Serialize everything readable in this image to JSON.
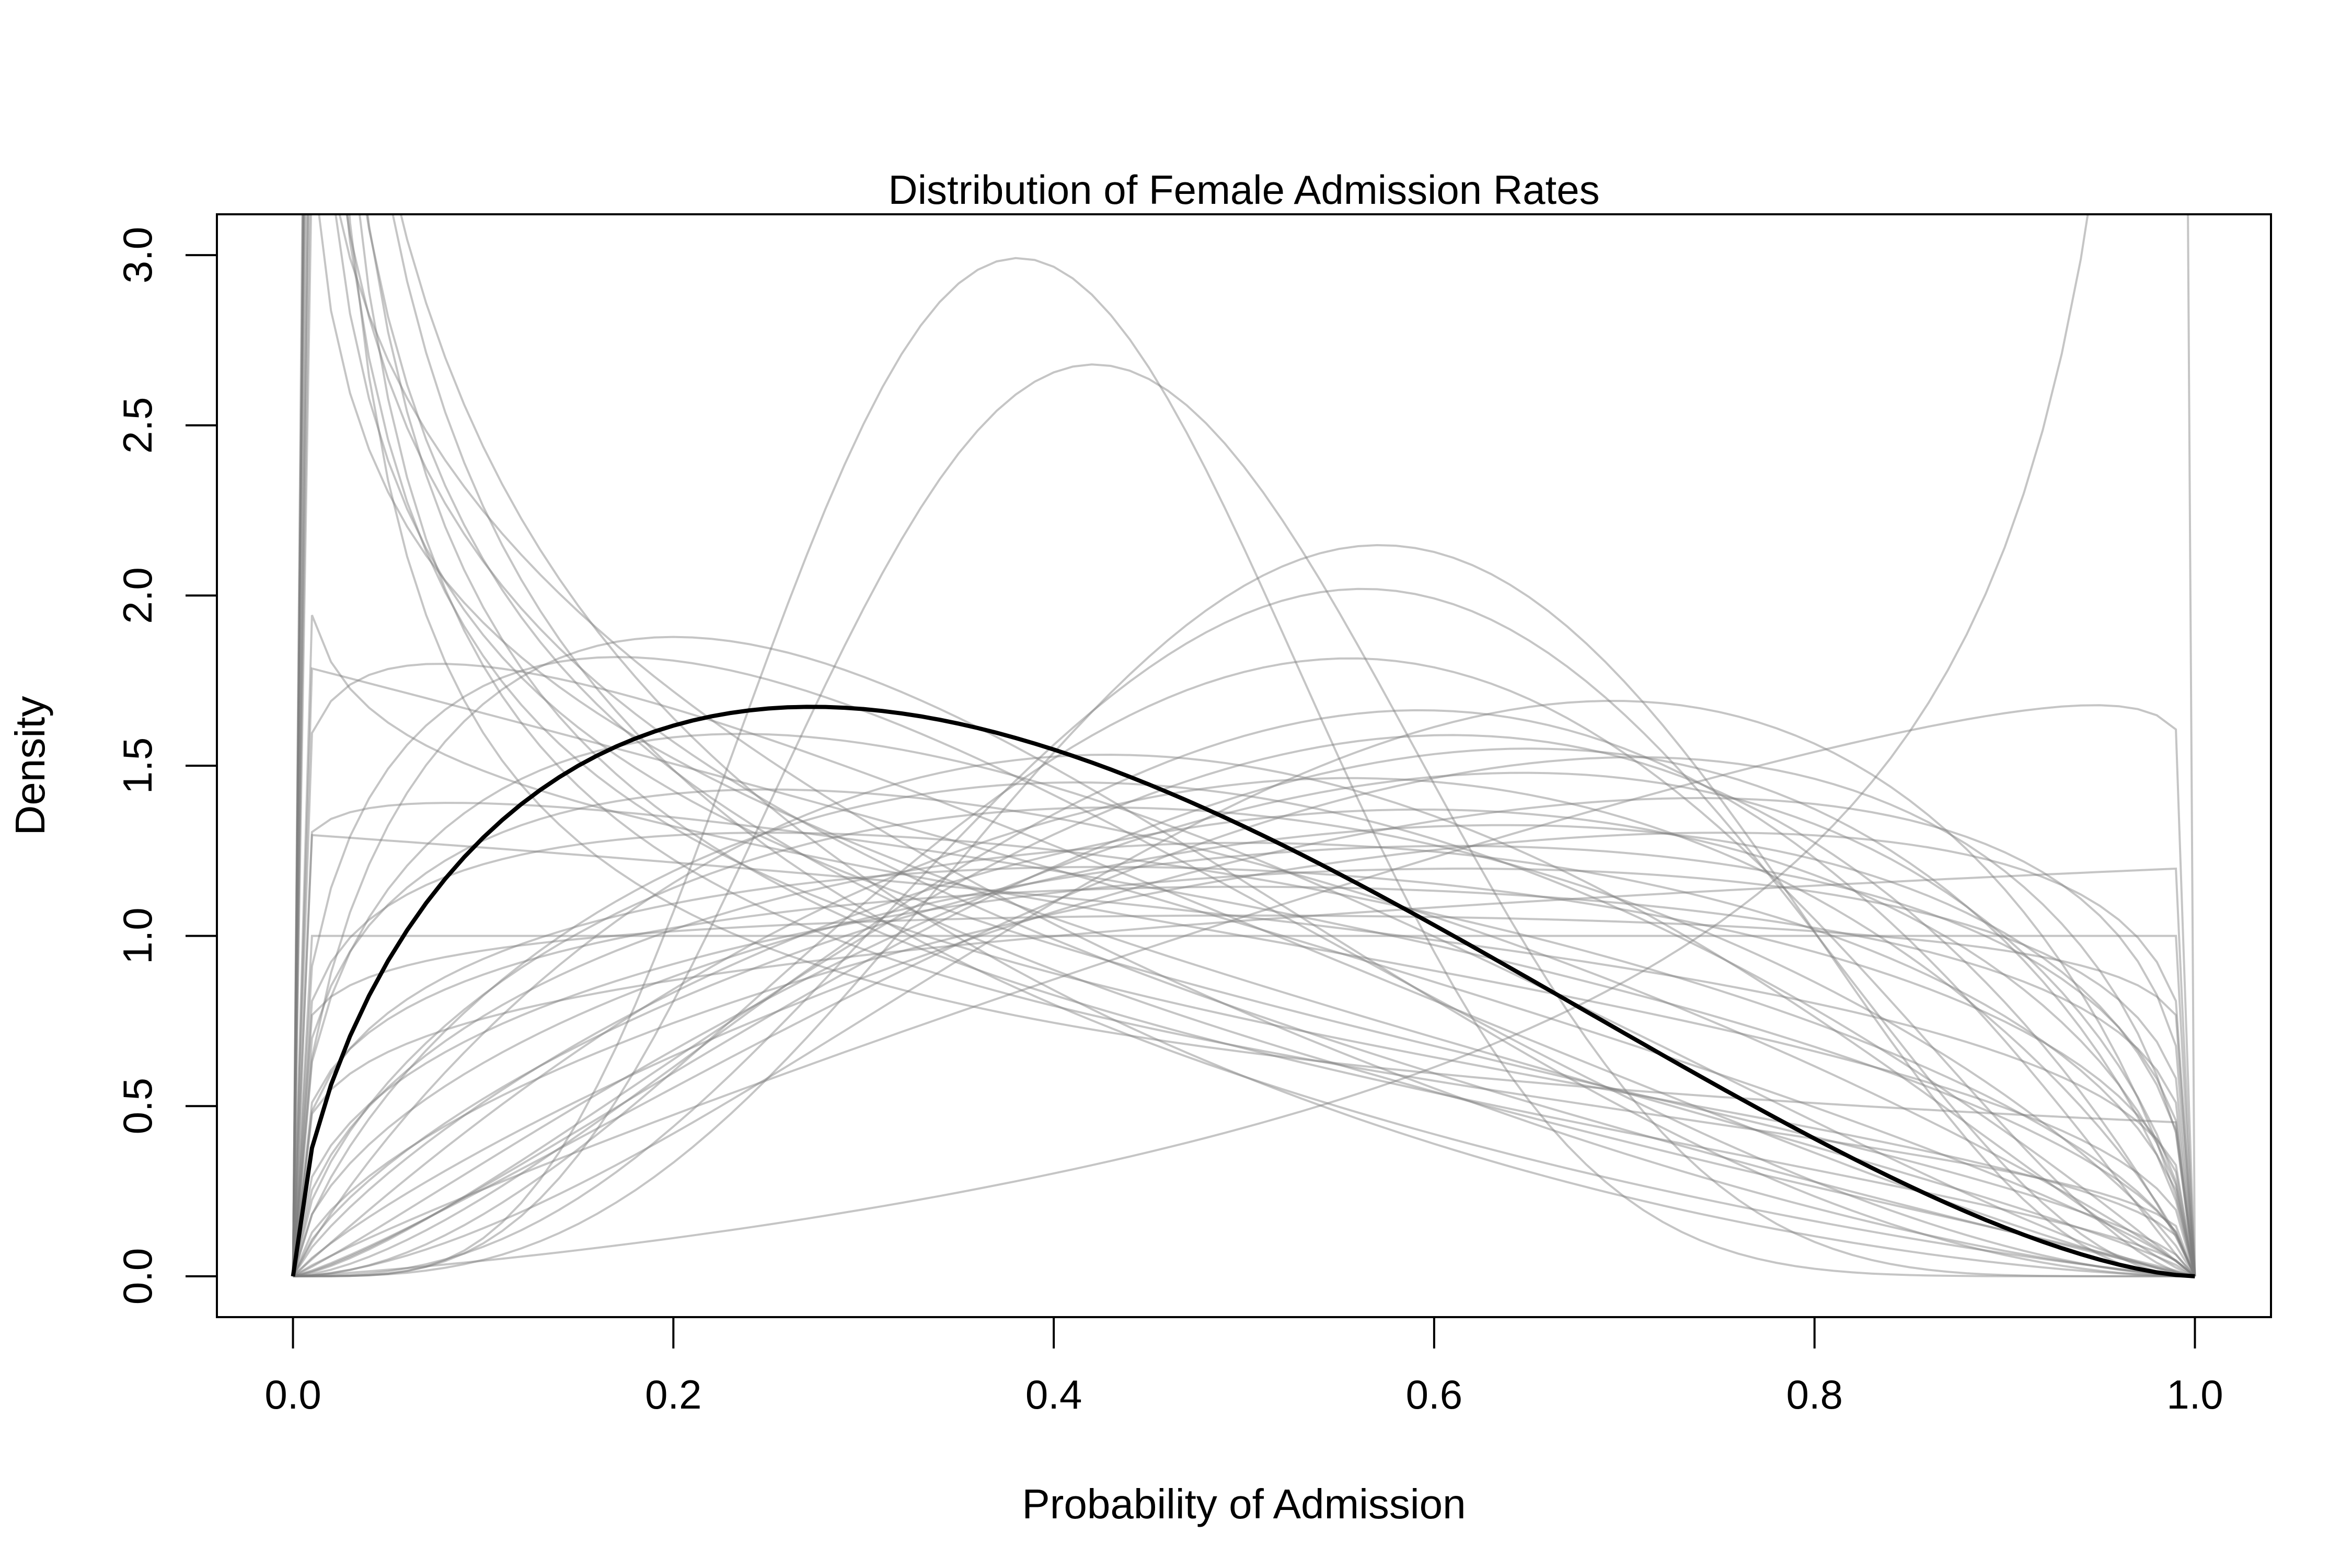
{
  "chart_data": {
    "type": "line",
    "title": "Distribution of Female Admission Rates",
    "xlabel": "Probability of Admission",
    "ylabel": "Density",
    "xlim": [
      -0.04,
      1.04
    ],
    "ylim": [
      -0.12,
      3.12
    ],
    "x_ticks": [
      "0.0",
      "0.2",
      "0.4",
      "0.6",
      "0.8",
      "1.0"
    ],
    "y_ticks": [
      "0.0",
      "0.5",
      "1.0",
      "1.5",
      "2.0",
      "2.5",
      "3.0"
    ],
    "grid": false,
    "legend": "none",
    "colors": {
      "mean_curve": "#000000",
      "sample_curves": "#7f7f7f"
    },
    "mean_curve": {
      "distribution": "beta",
      "a": 1.6,
      "b": 2.6
    },
    "sample_curves": [
      {
        "a": 0.45,
        "b": 1.0
      },
      {
        "a": 0.5,
        "b": 1.3
      },
      {
        "a": 0.55,
        "b": 1.6
      },
      {
        "a": 0.6,
        "b": 1.4
      },
      {
        "a": 0.6,
        "b": 2.2
      },
      {
        "a": 0.65,
        "b": 1.9
      },
      {
        "a": 0.7,
        "b": 1.6
      },
      {
        "a": 0.7,
        "b": 2.6
      },
      {
        "a": 0.75,
        "b": 2.0
      },
      {
        "a": 0.8,
        "b": 1.8
      },
      {
        "a": 0.85,
        "b": 2.4
      },
      {
        "a": 0.9,
        "b": 1.4
      },
      {
        "a": 1.0,
        "b": 1.3
      },
      {
        "a": 1.0,
        "b": 1.8
      },
      {
        "a": 1.05,
        "b": 1.55
      },
      {
        "a": 1.1,
        "b": 1.1
      },
      {
        "a": 1.1,
        "b": 2.2
      },
      {
        "a": 1.2,
        "b": 1.6
      },
      {
        "a": 1.25,
        "b": 1.25
      },
      {
        "a": 1.3,
        "b": 1.9
      },
      {
        "a": 1.3,
        "b": 1.4
      },
      {
        "a": 1.35,
        "b": 2.7
      },
      {
        "a": 1.4,
        "b": 1.25
      },
      {
        "a": 1.4,
        "b": 2.3
      },
      {
        "a": 1.5,
        "b": 1.5
      },
      {
        "a": 1.5,
        "b": 3.0
      },
      {
        "a": 1.55,
        "b": 1.35
      },
      {
        "a": 1.6,
        "b": 1.8
      },
      {
        "a": 1.6,
        "b": 1.2
      },
      {
        "a": 1.7,
        "b": 2.0
      },
      {
        "a": 1.7,
        "b": 1.4
      },
      {
        "a": 1.8,
        "b": 1.55
      },
      {
        "a": 1.85,
        "b": 1.3
      },
      {
        "a": 1.9,
        "b": 2.2
      },
      {
        "a": 2.0,
        "b": 1.8
      },
      {
        "a": 2.1,
        "b": 1.6
      },
      {
        "a": 2.2,
        "b": 1.5
      },
      {
        "a": 2.3,
        "b": 1.7
      },
      {
        "a": 2.4,
        "b": 1.9
      },
      {
        "a": 2.6,
        "b": 2.1
      },
      {
        "a": 2.7,
        "b": 1.75
      },
      {
        "a": 3.0,
        "b": 2.6
      },
      {
        "a": 3.7,
        "b": 3.1
      },
      {
        "a": 4.2,
        "b": 3.4
      },
      {
        "a": 5.0,
        "b": 6.5
      },
      {
        "a": 5.5,
        "b": 8.3
      },
      {
        "a": 1.9,
        "b": 1.05
      },
      {
        "a": 2.2,
        "b": 0.45
      },
      {
        "a": 1.2,
        "b": 1.0
      },
      {
        "a": 1.0,
        "b": 1.0
      }
    ]
  }
}
